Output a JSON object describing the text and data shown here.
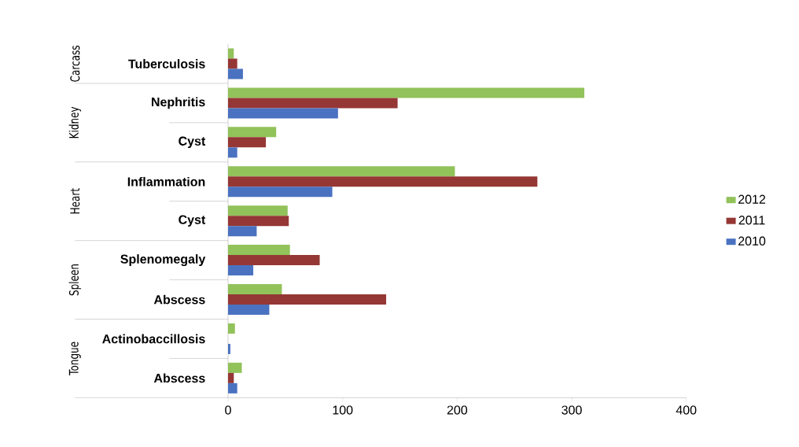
{
  "chart_data": {
    "type": "bar",
    "orientation": "horizontal",
    "categories": [
      "Tuberculosis",
      "Nephritis",
      "Cyst",
      "Inflammation",
      "Cyst",
      "Splenomegaly",
      "Abscess",
      "Actinobaccillosis",
      "Abscess"
    ],
    "series": [
      {
        "name": "2012",
        "color": "#92c25a",
        "values": [
          5,
          311,
          42,
          198,
          52,
          54,
          47,
          6,
          12
        ]
      },
      {
        "name": "2011",
        "color": "#953735",
        "values": [
          8,
          148,
          33,
          270,
          53,
          80,
          138,
          0,
          5
        ]
      },
      {
        "name": "2010",
        "color": "#4a72c0",
        "values": [
          13,
          96,
          8,
          91,
          25,
          22,
          36,
          2,
          8
        ]
      }
    ],
    "xlim": [
      0,
      400
    ],
    "xticks": [
      0,
      100,
      200,
      300,
      400
    ],
    "legend": "right",
    "grid": false,
    "annotations": [
      "Carcass",
      "Kidney",
      "Heart",
      "Spleen",
      "Tongue"
    ]
  }
}
